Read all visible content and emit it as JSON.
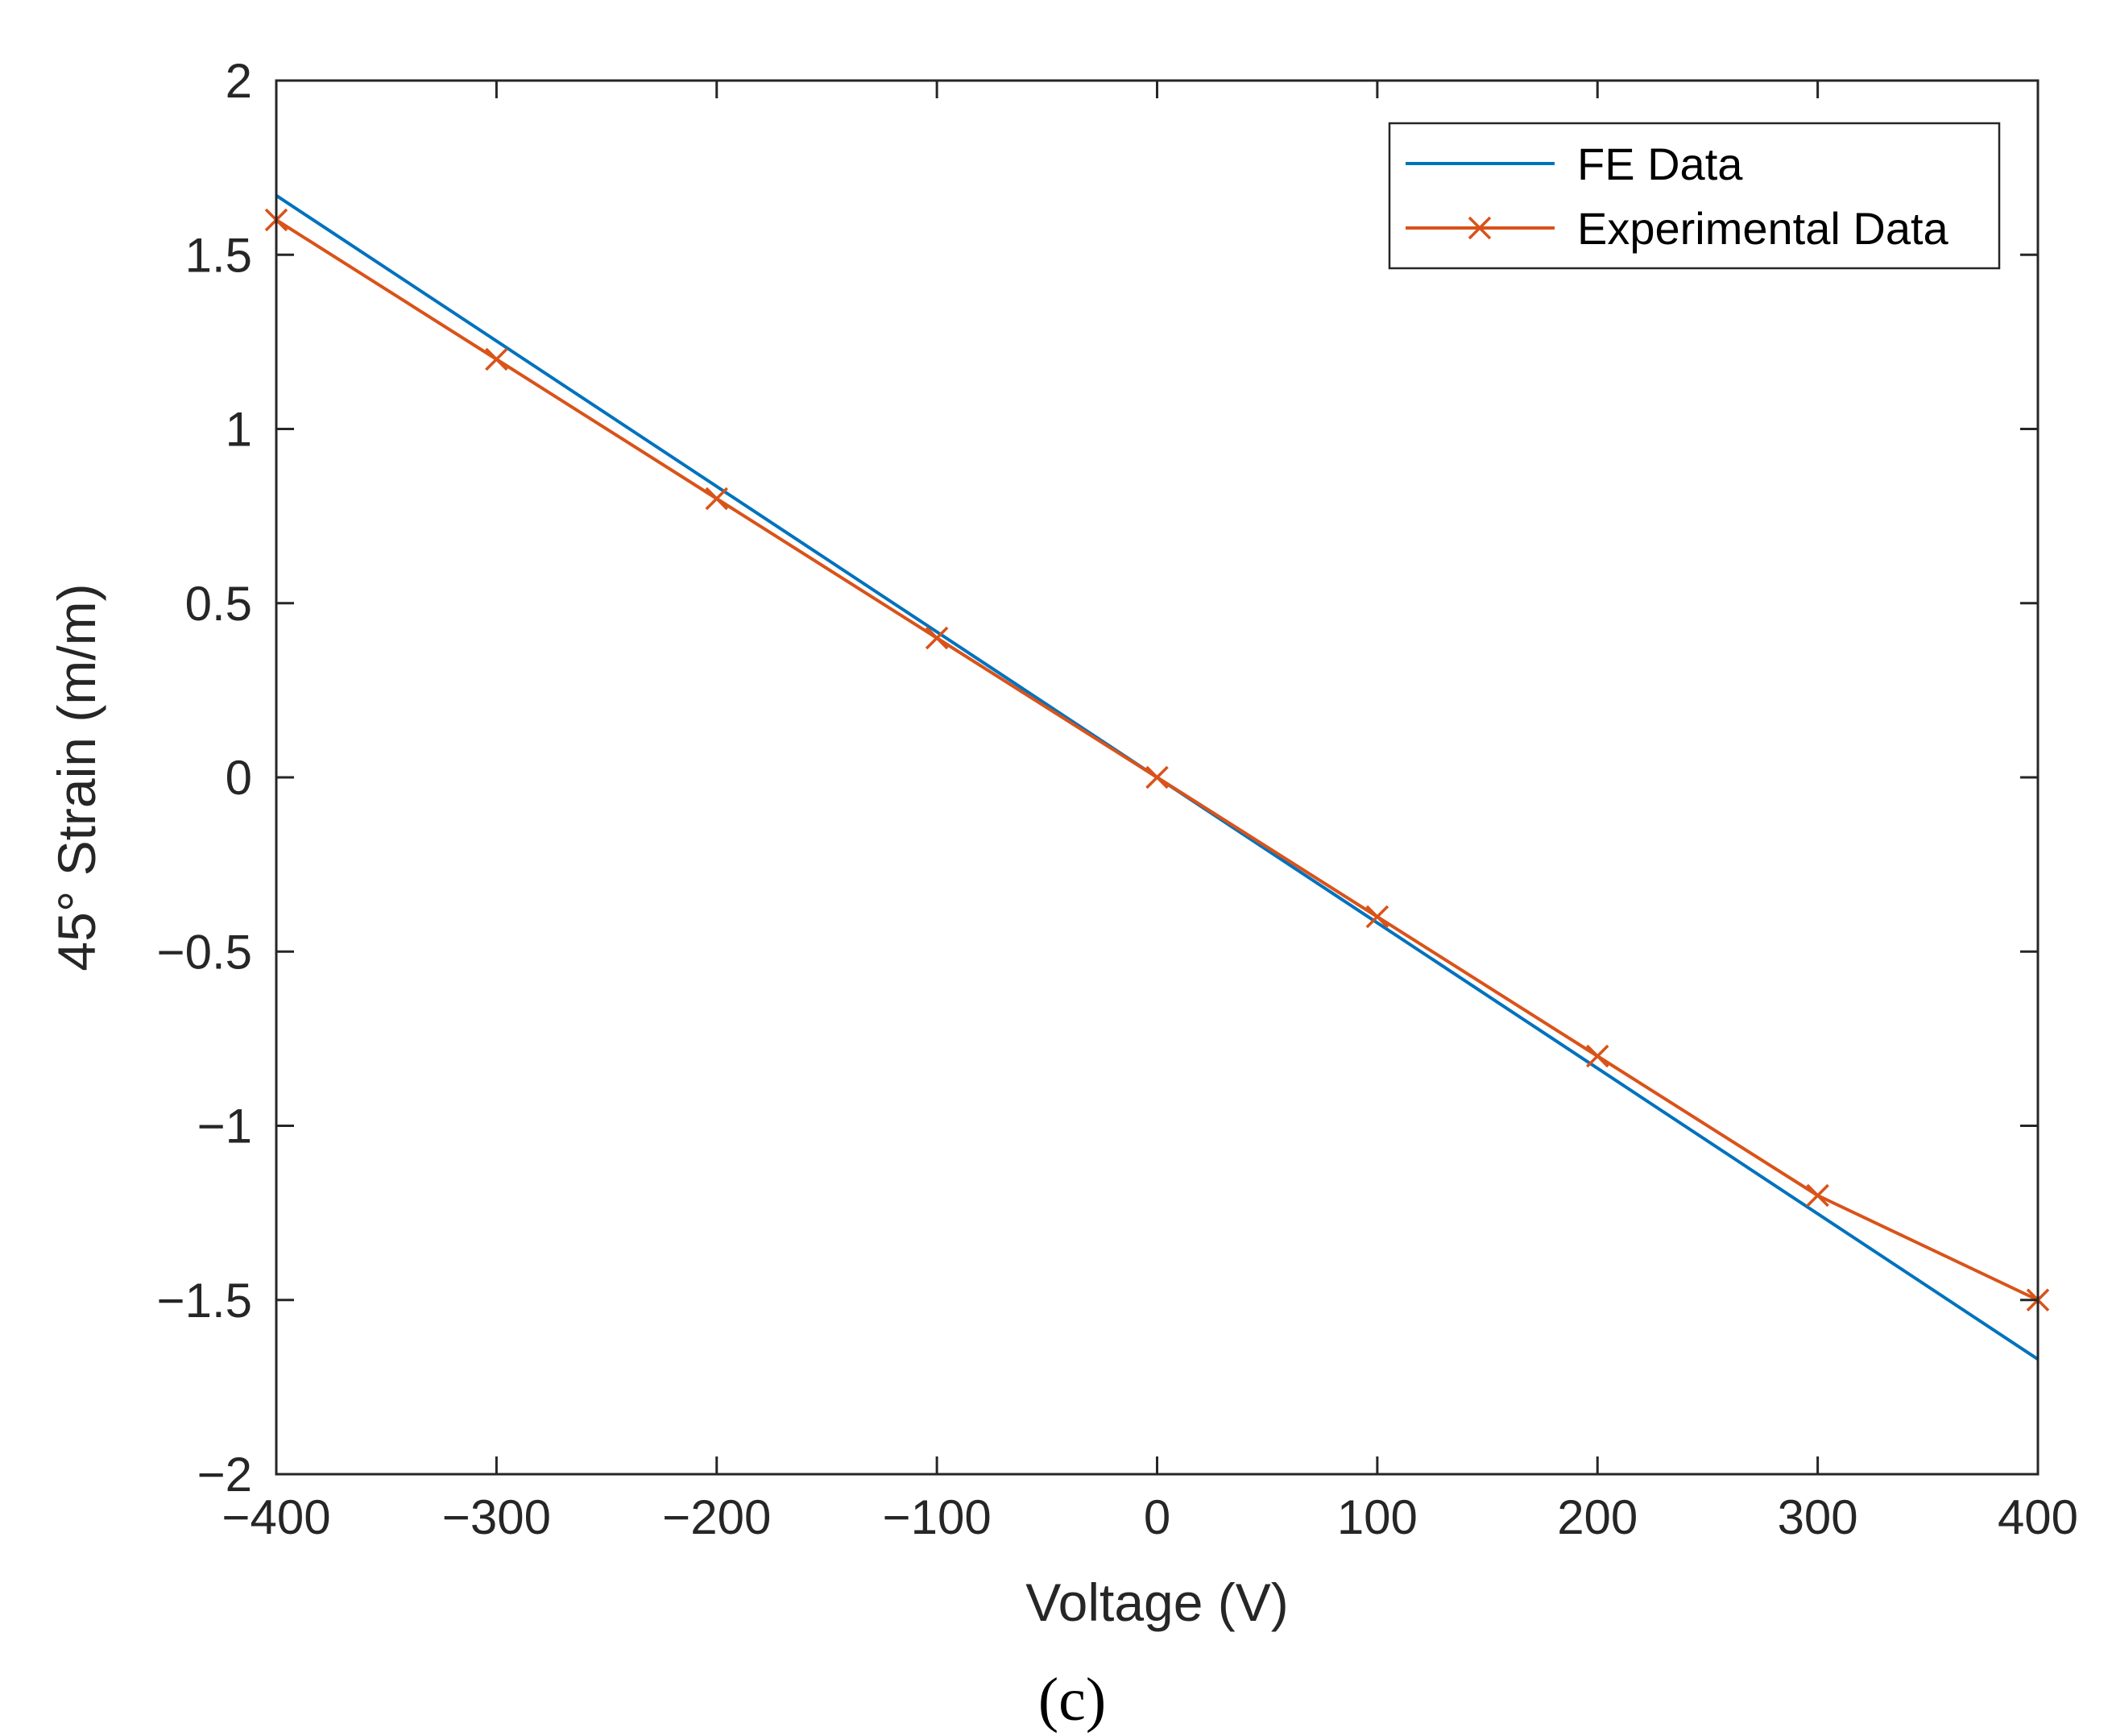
{
  "chart_data": {
    "type": "line",
    "title": "",
    "xlabel": "Voltage (V)",
    "ylabel": "45° Strain (m/m)",
    "xlim": [
      -400,
      400
    ],
    "ylim": [
      -2,
      2
    ],
    "xticks": [
      -400,
      -300,
      -200,
      -100,
      0,
      100,
      200,
      300,
      400
    ],
    "yticks": [
      -2,
      -1.5,
      -1,
      -0.5,
      0,
      0.5,
      1,
      1.5,
      2
    ],
    "xtick_labels": [
      "−400",
      "−300",
      "−200",
      "−100",
      "0",
      "100",
      "200",
      "300",
      "400"
    ],
    "ytick_labels": [
      "−2",
      "−1.5",
      "−1",
      "−0.5",
      "0",
      "0.5",
      "1",
      "1.5",
      "2"
    ],
    "grid": false,
    "legend_position": "top-right",
    "series": [
      {
        "name": "FE Data",
        "color": "#0072BD",
        "marker": "none",
        "x": [
          -400,
          400
        ],
        "y": [
          1.67,
          -1.67
        ]
      },
      {
        "name": "Experimental Data",
        "color": "#D95319",
        "marker": "x",
        "x": [
          -400,
          -300,
          -200,
          -100,
          0,
          100,
          200,
          300,
          400
        ],
        "y": [
          1.6,
          1.2,
          0.8,
          0.4,
          0,
          -0.4,
          -0.8,
          -1.2,
          -1.5
        ]
      }
    ],
    "panel_label": "(c)"
  }
}
